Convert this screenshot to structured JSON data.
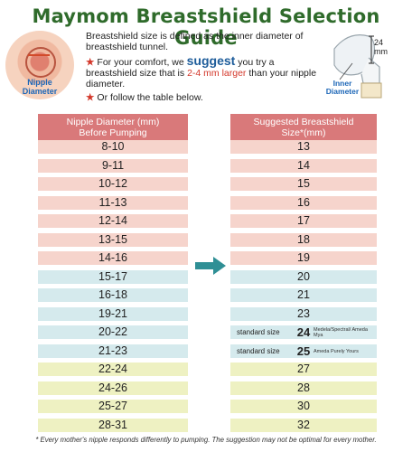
{
  "title": "Maymom Breastshield Selection Guide",
  "nipple_label": "Nipple Diameter",
  "description": {
    "definition": "Breastshield size is defined as the inner diameter of breastshield tunnel.",
    "comfort_prefix": "For your comfort, we",
    "comfort_keyword": "suggest",
    "comfort_middle": "you try a breastshield size that is",
    "comfort_range": "2-4 mm larger",
    "comfort_suffix": "than your nipple diameter.",
    "table_note": "Or follow the table below."
  },
  "shield_diagram": {
    "dimension": "24 mm",
    "label": "Inner Diameter"
  },
  "table": {
    "left_header": "Nipple Diameter (mm) Before Pumping",
    "right_header": "Suggested Breastshield Size*(mm)",
    "rows": [
      {
        "nipple": "8-10",
        "shield": "13",
        "color": "pink"
      },
      {
        "nipple": "9-11",
        "shield": "14",
        "color": "pink"
      },
      {
        "nipple": "10-12",
        "shield": "15",
        "color": "pink"
      },
      {
        "nipple": "11-13",
        "shield": "16",
        "color": "pink"
      },
      {
        "nipple": "12-14",
        "shield": "17",
        "color": "pink"
      },
      {
        "nipple": "13-15",
        "shield": "18",
        "color": "pink"
      },
      {
        "nipple": "14-16",
        "shield": "19",
        "color": "pink"
      },
      {
        "nipple": "15-17",
        "shield": "20",
        "color": "blue"
      },
      {
        "nipple": "16-18",
        "shield": "21",
        "color": "blue"
      },
      {
        "nipple": "19-21",
        "shield": "23",
        "color": "blue"
      },
      {
        "nipple": "20-22",
        "shield": "24",
        "color": "blue",
        "standard": "standard size",
        "brand": "Medela/Spectral/ Ameda Mya"
      },
      {
        "nipple": "21-23",
        "shield": "25",
        "color": "blue",
        "standard": "standard size",
        "brand": "Ameda Purely Yours"
      },
      {
        "nipple": "22-24",
        "shield": "27",
        "color": "yellow"
      },
      {
        "nipple": "24-26",
        "shield": "28",
        "color": "yellow"
      },
      {
        "nipple": "25-27",
        "shield": "30",
        "color": "yellow"
      },
      {
        "nipple": "28-31",
        "shield": "32",
        "color": "yellow"
      }
    ]
  },
  "footnote": "* Every mother's nipple responds differently to pumping. The suggestion may not be optimal for every mother.",
  "icons": {
    "nipple": "nipple-diagram-icon",
    "shield": "breastshield-icon",
    "arrow": "right-arrow-icon"
  },
  "colors": {
    "title": "#2f6b2b",
    "header": "#d9797a",
    "pink": "#f6d4cc",
    "blue": "#d5eaed",
    "yellow": "#eef1c2",
    "arrow": "#2f8f95"
  }
}
